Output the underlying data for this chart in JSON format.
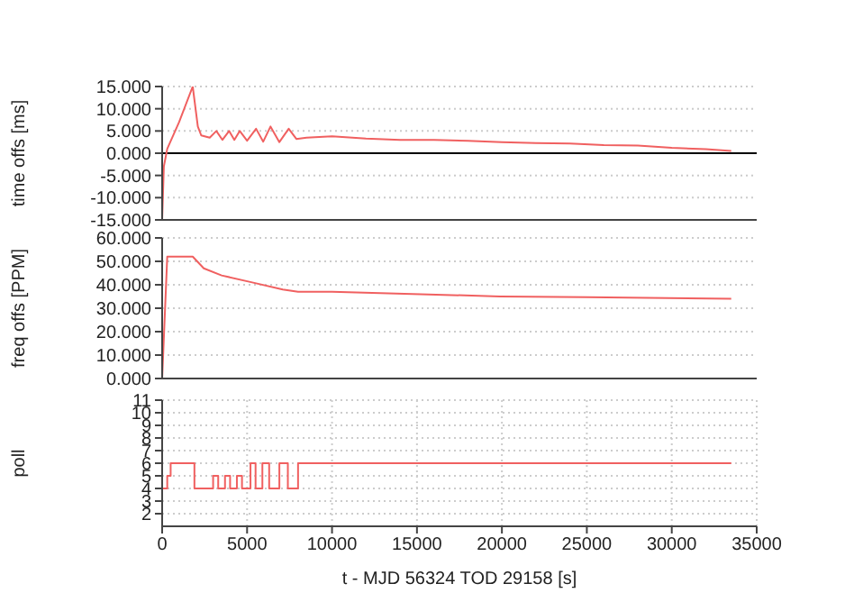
{
  "chart_data": [
    {
      "type": "line",
      "ylabel": "time offs [ms]",
      "xlim": [
        0,
        35000
      ],
      "xticks": [
        0,
        5000,
        10000,
        15000,
        20000,
        25000,
        30000,
        35000
      ],
      "ylim": [
        -15,
        15
      ],
      "yticks": [
        {
          "value": -15,
          "label": "-15.000"
        },
        {
          "value": -10,
          "label": "-10.000"
        },
        {
          "value": -5,
          "label": "-5.000"
        },
        {
          "value": 0,
          "label": "0.000"
        },
        {
          "value": 5,
          "label": "5.000"
        },
        {
          "value": 10,
          "label": "10.000"
        },
        {
          "value": 15,
          "label": "15.000"
        }
      ],
      "tick_labels": "y",
      "grid": true,
      "marker": "none",
      "line_style": "solid",
      "ref_lines": [
        {
          "axis": "y",
          "value": 0,
          "label": null,
          "color": "#000000"
        }
      ],
      "series": [
        {
          "color": "#f06060",
          "x": [
            0,
            100,
            300,
            1000,
            1800,
            2100,
            2300,
            2800,
            3190,
            3550,
            3940,
            4250,
            4570,
            5000,
            5530,
            5950,
            6380,
            6900,
            7450,
            7900,
            8500,
            10000,
            12000,
            14000,
            16000,
            18000,
            20000,
            22000,
            24000,
            26000,
            28000,
            30000,
            32000,
            33500
          ],
          "values": [
            -15,
            -3,
            1,
            7,
            15,
            6,
            4,
            3.5,
            5,
            3,
            5,
            3,
            5,
            2.8,
            5.5,
            2.6,
            6,
            2.5,
            5.5,
            3.2,
            3.5,
            3.8,
            3.3,
            3,
            3,
            2.8,
            2.5,
            2.3,
            2.2,
            1.8,
            1.7,
            1.2,
            0.9,
            0.5
          ]
        }
      ]
    },
    {
      "type": "line",
      "ylabel": "freq offs [PPM]",
      "xlim": [
        0,
        35000
      ],
      "xticks": [
        0,
        5000,
        10000,
        15000,
        20000,
        25000,
        30000,
        35000
      ],
      "ylim": [
        0,
        60
      ],
      "yticks": [
        {
          "value": 0,
          "label": "0.000"
        },
        {
          "value": 10,
          "label": "10.000"
        },
        {
          "value": 20,
          "label": "20.000"
        },
        {
          "value": 30,
          "label": "30.000"
        },
        {
          "value": 40,
          "label": "40.000"
        },
        {
          "value": 50,
          "label": "50.000"
        },
        {
          "value": 60,
          "label": "60.000"
        }
      ],
      "tick_labels": "y",
      "grid": true,
      "marker": "none",
      "line_style": "solid",
      "series": [
        {
          "color": "#f06060",
          "x": [
            0,
            300,
            1800,
            2450,
            3500,
            5300,
            7100,
            8000,
            10000,
            15200,
            19900,
            25000,
            33500
          ],
          "values": [
            0,
            52,
            52,
            47,
            44,
            41,
            38,
            37,
            37,
            36,
            35,
            34.7,
            34
          ]
        }
      ]
    },
    {
      "type": "step",
      "xlabel": "t - MJD 56324 TOD 29158 [s]",
      "ylabel": "poll",
      "xlim": [
        0,
        35000
      ],
      "xticks": [
        0,
        5000,
        10000,
        15000,
        20000,
        25000,
        30000,
        35000
      ],
      "ylim": [
        1,
        11
      ],
      "yticks": [
        2,
        3,
        4,
        5,
        6,
        7,
        8,
        9,
        10,
        11
      ],
      "grid": true,
      "marker": "none",
      "line_style": "solid",
      "series": [
        {
          "color": "#f06060",
          "x": [
            0,
            300,
            500,
            1900,
            3000,
            3300,
            3700,
            4000,
            4400,
            4700,
            5200,
            5500,
            5900,
            6300,
            6900,
            7400,
            8000,
            33500
          ],
          "values": [
            4,
            5,
            6,
            4,
            5,
            4,
            5,
            4,
            5,
            4,
            6,
            4,
            6,
            4,
            6,
            4,
            6,
            6
          ]
        }
      ]
    }
  ]
}
